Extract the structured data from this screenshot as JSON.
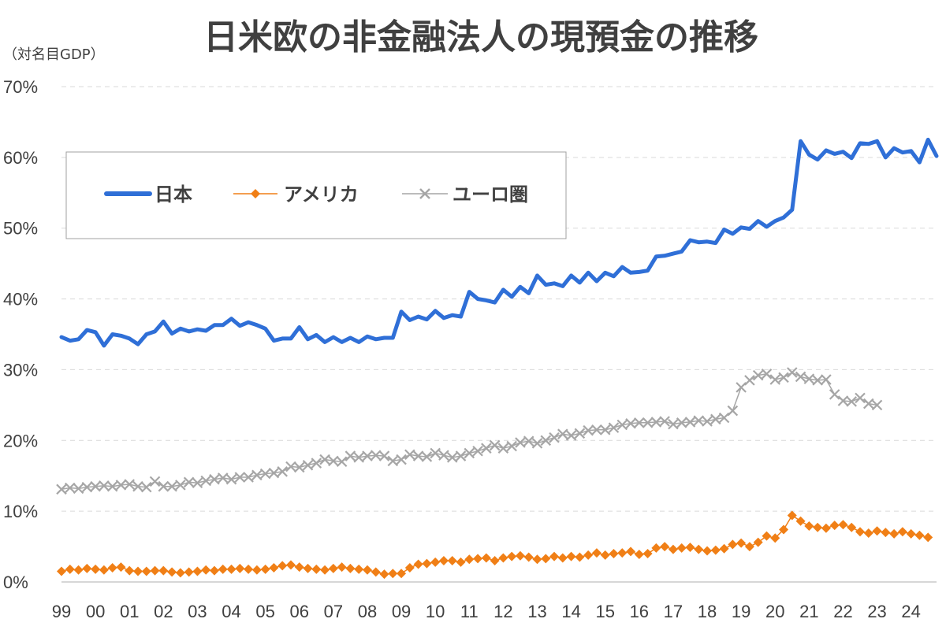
{
  "chart_data": {
    "type": "line",
    "title": "日米欧の非金融法人の現預金の推移",
    "unit_label": "（対名目GDP）",
    "ylim": [
      0,
      70
    ],
    "yticks": [
      "0%",
      "10%",
      "20%",
      "30%",
      "40%",
      "50%",
      "60%",
      "70%"
    ],
    "ytick_values": [
      0,
      10,
      20,
      30,
      40,
      50,
      60,
      70
    ],
    "xlim": [
      1999,
      2024.75
    ],
    "xtick_labels": [
      "99",
      "00",
      "01",
      "02",
      "03",
      "04",
      "05",
      "06",
      "07",
      "08",
      "09",
      "10",
      "11",
      "12",
      "13",
      "14",
      "15",
      "16",
      "17",
      "18",
      "19",
      "20",
      "21",
      "22",
      "23",
      "24"
    ],
    "xtick_years": [
      1999,
      2000,
      2001,
      2002,
      2003,
      2004,
      2005,
      2006,
      2007,
      2008,
      2009,
      2010,
      2011,
      2012,
      2013,
      2014,
      2015,
      2016,
      2017,
      2018,
      2019,
      2020,
      2021,
      2022,
      2023,
      2024
    ],
    "grid": true,
    "legend_position": "top-left",
    "x_start_year": 1999,
    "points_per_year": 4,
    "series": [
      {
        "name": "日本",
        "color": "#2F6FD7",
        "marker": "none",
        "values": [
          34.6,
          34.1,
          34.3,
          35.6,
          35.3,
          33.4,
          35.0,
          34.8,
          34.4,
          33.6,
          35.0,
          35.4,
          36.8,
          35.1,
          35.8,
          35.4,
          35.7,
          35.5,
          36.3,
          36.3,
          37.2,
          36.2,
          36.7,
          36.3,
          35.8,
          34.1,
          34.4,
          34.4,
          36.0,
          34.3,
          34.9,
          33.9,
          34.6,
          33.9,
          34.5,
          33.9,
          34.7,
          34.3,
          34.5,
          34.5,
          38.2,
          37.0,
          37.5,
          37.1,
          38.3,
          37.3,
          37.7,
          37.5,
          41.0,
          40.0,
          39.8,
          39.5,
          41.3,
          40.3,
          41.7,
          40.8,
          43.3,
          42.0,
          42.2,
          41.8,
          43.3,
          42.3,
          43.7,
          42.5,
          43.7,
          43.2,
          44.5,
          43.7,
          43.8,
          44.0,
          46.0,
          46.1,
          46.4,
          46.7,
          48.3,
          48.0,
          48.1,
          47.9,
          49.8,
          49.2,
          50.1,
          49.9,
          51.0,
          50.2,
          51.0,
          51.5,
          52.6,
          62.3,
          60.4,
          59.7,
          61.0,
          60.5,
          60.8,
          59.9,
          62.0,
          61.9,
          62.3,
          60.0,
          61.3,
          60.7,
          60.9,
          59.3,
          62.5,
          60.2
        ]
      },
      {
        "name": "アメリカ",
        "color": "#F07F16",
        "marker": "diamond",
        "values": [
          1.5,
          1.8,
          1.7,
          1.9,
          1.8,
          1.7,
          2.0,
          2.1,
          1.6,
          1.5,
          1.5,
          1.6,
          1.6,
          1.4,
          1.3,
          1.4,
          1.5,
          1.7,
          1.6,
          1.8,
          1.8,
          1.9,
          1.8,
          1.7,
          1.8,
          2.0,
          2.3,
          2.4,
          2.1,
          1.9,
          1.8,
          1.7,
          1.9,
          2.1,
          1.9,
          1.8,
          1.7,
          1.4,
          1.1,
          1.2,
          1.2,
          2.0,
          2.5,
          2.6,
          2.8,
          3.0,
          3.0,
          2.8,
          3.2,
          3.3,
          3.4,
          3.0,
          3.4,
          3.6,
          3.7,
          3.5,
          3.2,
          3.3,
          3.6,
          3.4,
          3.6,
          3.5,
          3.8,
          4.1,
          3.8,
          4.0,
          4.1,
          4.3,
          3.9,
          4.0,
          4.8,
          5.0,
          4.6,
          4.8,
          4.9,
          4.6,
          4.4,
          4.5,
          4.7,
          5.3,
          5.5,
          5.0,
          5.6,
          6.5,
          6.2,
          7.4,
          9.4,
          8.6,
          7.9,
          7.7,
          7.6,
          8.0,
          8.1,
          7.7,
          7.1,
          6.9,
          7.2,
          7.0,
          6.8,
          7.1,
          6.8,
          6.6,
          6.3
        ]
      },
      {
        "name": "ユーロ圏",
        "color": "#A6A6A6",
        "marker": "x",
        "values": [
          13.1,
          13.3,
          13.2,
          13.4,
          13.5,
          13.6,
          13.5,
          13.7,
          13.8,
          13.5,
          13.4,
          14.2,
          13.5,
          13.5,
          13.7,
          14.1,
          14.0,
          14.3,
          14.5,
          14.7,
          14.5,
          14.8,
          14.8,
          15.1,
          15.3,
          15.4,
          15.6,
          16.3,
          16.2,
          16.5,
          16.8,
          17.3,
          17.1,
          17.0,
          17.8,
          17.6,
          17.8,
          17.9,
          17.8,
          17.1,
          17.3,
          18.0,
          17.8,
          17.7,
          18.2,
          17.9,
          17.6,
          17.8,
          18.2,
          18.5,
          18.9,
          19.3,
          18.9,
          19.2,
          19.7,
          19.9,
          19.6,
          20.0,
          20.4,
          20.9,
          20.7,
          21.0,
          21.4,
          21.5,
          21.5,
          21.8,
          22.2,
          22.4,
          22.5,
          22.5,
          22.6,
          22.7,
          22.3,
          22.5,
          22.6,
          22.8,
          22.7,
          23.0,
          23.2,
          24.2,
          27.5,
          28.5,
          29.2,
          29.4,
          28.6,
          28.9,
          29.6,
          29.0,
          28.7,
          28.5,
          28.6,
          26.5,
          25.6,
          25.5,
          26.0,
          25.2,
          25.0
        ]
      }
    ]
  }
}
